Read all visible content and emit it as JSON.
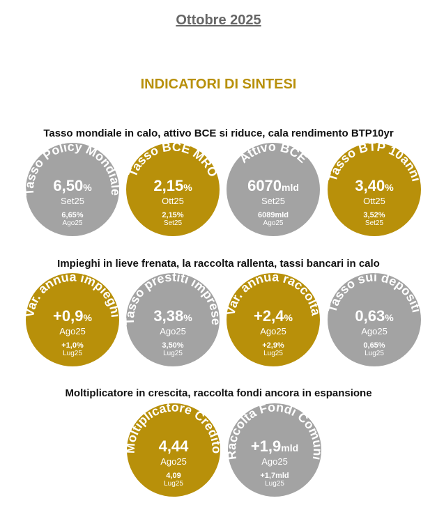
{
  "month": "Ottobre 2025",
  "title": "INDICATORI DI SINTESI",
  "colors": {
    "gray": "#a3a3a3",
    "gold": "#b8900a"
  },
  "sections": [
    {
      "heading": "Tasso mondiale in calo, attivo BCE si riduce, cala rendimento BTP10yr",
      "items": [
        {
          "label": "Tasso Policy Mondiale",
          "value": "6,50",
          "unit": "%",
          "period": "Set25",
          "prev_value": "6,65%",
          "prev_period": "Ago25",
          "color": "gray"
        },
        {
          "label": "Tasso BCE MRO",
          "value": "2,15",
          "unit": "%",
          "period": "Ott25",
          "prev_value": "2,15%",
          "prev_period": "Set25",
          "color": "gold"
        },
        {
          "label": "Attivo BCE",
          "value": "6070",
          "unit": "mld",
          "period": "Set25",
          "prev_value": "6089mld",
          "prev_period": "Ago25",
          "color": "gray"
        },
        {
          "label": "Tasso BTP 10anni",
          "value": "3,40",
          "unit": "%",
          "period": "Ott25",
          "prev_value": "3,52%",
          "prev_period": "Set25",
          "color": "gold"
        }
      ]
    },
    {
      "heading": "Impieghi in lieve frenata, la raccolta rallenta, tassi bancari in calo",
      "items": [
        {
          "label": "Var. annua impieghi",
          "value": "+0,9",
          "unit": "%",
          "period": "Ago25",
          "prev_value": "+1,0%",
          "prev_period": "Lug25",
          "color": "gold"
        },
        {
          "label": "Tasso prestiti imprese",
          "value": "3,38",
          "unit": "%",
          "period": "Ago25",
          "prev_value": "3,50%",
          "prev_period": "Lug25",
          "color": "gray"
        },
        {
          "label": "Var. annua raccolta",
          "value": "+2,4",
          "unit": "%",
          "period": "Ago25",
          "prev_value": "+2,9%",
          "prev_period": "Lug25",
          "color": "gold"
        },
        {
          "label": "Tasso sui depositi",
          "value": "0,63",
          "unit": "%",
          "period": "Ago25",
          "prev_value": "0,65%",
          "prev_period": "Lug25",
          "color": "gray"
        }
      ]
    },
    {
      "heading": "Moltiplicatore in crescita, raccolta fondi ancora in espansione",
      "items": [
        {
          "label": "Moltiplicatore Credito",
          "value": "4,44",
          "unit": "",
          "period": "Ago25",
          "prev_value": "4,09",
          "prev_period": "Lug25",
          "color": "gold"
        },
        {
          "label": "Raccolta Fondi Comuni",
          "value": "+1,9",
          "unit": "mld",
          "period": "Ago25",
          "prev_value": "+1,7mld",
          "prev_period": "Lug25",
          "color": "gray"
        }
      ]
    }
  ]
}
